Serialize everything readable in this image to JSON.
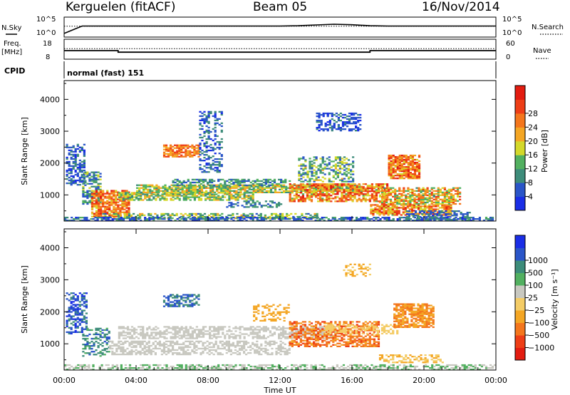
{
  "header": {
    "radar": "Kerguelen (fitACF)",
    "beam": "Beam 05",
    "date": "16/Nov/2014"
  },
  "side_labels": {
    "nsky": "N.Sky",
    "nsearch": "N.Search",
    "freq_line1": "Freq.",
    "freq_line2": "[MHz]",
    "nave": "Nave",
    "cpid": "CPID",
    "cpid_value": "normal (fast) 151"
  },
  "colors": {
    "power_scale": [
      "#1a2ee6",
      "#2a55c8",
      "#3d8c7a",
      "#52b060",
      "#d4d82a",
      "#f4a624",
      "#f4761c",
      "#ee3e16",
      "#e31c10"
    ],
    "velocity_scale": [
      "#e31c10",
      "#ee3e16",
      "#f4761c",
      "#f4a624",
      "#f4cc66",
      "#c8c8c0",
      "#52b060",
      "#3d8c7a",
      "#2a55c8",
      "#1a2ee6"
    ],
    "ground_scatter": "#c4c2ba"
  },
  "chart_data": [
    {
      "type": "line",
      "name": "noise_panel",
      "left_axis_label": "N.Sky",
      "left_ticks": [
        "10^5",
        "10^0"
      ],
      "right_axis_label": "N.Search",
      "right_ticks": [
        "10^5",
        "10^0"
      ],
      "x": [
        "00:00",
        "01:00",
        "02:00",
        "03:00",
        "04:00",
        "05:00",
        "06:00",
        "07:00",
        "08:00",
        "09:00",
        "10:00",
        "11:00",
        "12:00",
        "13:00",
        "14:00",
        "15:00",
        "16:00",
        "17:00",
        "18:00",
        "19:00",
        "20:00",
        "21:00",
        "22:00",
        "23:00",
        "24:00"
      ],
      "n_sky_log10": [
        0.3,
        3.2,
        3.2,
        3.2,
        3.2,
        3.2,
        3.2,
        3.2,
        3.2,
        3.2,
        3.2,
        3.2,
        3.2,
        3.3,
        3.6,
        3.9,
        3.7,
        3.3,
        3.2,
        3.2,
        3.2,
        3.2,
        3.2,
        3.2,
        3.2
      ],
      "n_search_log10": [
        3.1,
        3.1,
        3.1,
        3.1,
        3.1,
        3.1,
        3.1,
        3.1,
        3.1,
        3.1,
        3.1,
        3.1,
        3.1,
        3.1,
        3.1,
        3.1,
        3.1,
        3.1,
        3.1,
        3.1,
        3.1,
        3.1,
        3.1,
        3.1,
        3.1
      ]
    },
    {
      "type": "line",
      "name": "freq_nave_panel",
      "left_axis_label": "Freq. [MHz]",
      "left_ticks": [
        "18",
        "8"
      ],
      "right_axis_label": "Nave",
      "right_ticks": [
        "60",
        "0"
      ],
      "x": [
        "00:00",
        "03:00",
        "03:00",
        "17:00",
        "17:00",
        "24:00"
      ],
      "freq_mhz": [
        12.0,
        12.0,
        10.9,
        10.9,
        12.0,
        12.0
      ],
      "nave": [
        32,
        32,
        32,
        32,
        32,
        32
      ]
    },
    {
      "type": "heatmap",
      "name": "power",
      "ylabel": "Slant Range [km]",
      "yticks": [
        1000,
        2000,
        3000,
        4000
      ],
      "ylim": [
        180,
        4590
      ],
      "colorbar_label": "Power [dB]",
      "colorbar_ticks": [
        "4",
        "8",
        "12",
        "16",
        "20",
        "24",
        "28"
      ],
      "colorbar_range": [
        0,
        32
      ]
    },
    {
      "type": "heatmap",
      "name": "velocity",
      "ylabel": "Slant Range [km]",
      "yticks": [
        1000,
        2000,
        3000,
        4000
      ],
      "ylim": [
        180,
        4590
      ],
      "colorbar_label": "Velocity [m s⁻¹]",
      "colorbar_ticks": [
        "1000",
        "500",
        "100",
        "25",
        "−25",
        "−100",
        "−500",
        "−1000"
      ],
      "xlabel": "Time UT",
      "xticks": [
        "00:00",
        "04:00",
        "08:00",
        "12:00",
        "16:00",
        "20:00",
        "00:00"
      ],
      "xlim_hours": [
        0,
        24
      ]
    }
  ]
}
